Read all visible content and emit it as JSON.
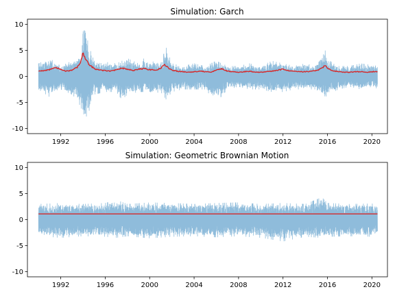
{
  "chart_data": [
    {
      "type": "line",
      "title": "Simulation: Garch",
      "xlabel": "",
      "ylabel": "",
      "xlim": [
        1989.0,
        2021.4
      ],
      "ylim": [
        -11,
        11
      ],
      "xticks": [
        1992,
        1996,
        2000,
        2004,
        2008,
        2012,
        2016,
        2020
      ],
      "yticks": [
        -10,
        -5,
        0,
        5,
        10
      ],
      "grid": false,
      "legend": "none",
      "x_range": [
        1990.0,
        2020.5
      ],
      "colors": {
        "returns": "#8fbcdb",
        "volatility": "#d62728"
      },
      "series": [
        {
          "role": "returns",
          "envelope": {
            "x": [
              1990.0,
              1991.0,
              1992.0,
              1993.0,
              1993.5,
              1993.9,
              1994.1,
              1994.5,
              1995.0,
              1996.0,
              1997.0,
              1997.5,
              1998.0,
              1999.0,
              1999.5,
              2000.0,
              2001.0,
              2001.5,
              2002.0,
              2003.0,
              2004.0,
              2005.0,
              2006.0,
              2007.0,
              2008.0,
              2009.0,
              2010.0,
              2011.0,
              2012.0,
              2013.0,
              2014.0,
              2015.0,
              2015.7,
              2016.0,
              2016.5,
              2017.0,
              2018.0,
              2019.0,
              2020.0,
              2020.5
            ],
            "upper": [
              2.5,
              3.5,
              2.0,
              3.0,
              3.5,
              6.0,
              10.8,
              6.0,
              3.0,
              2.8,
              2.5,
              3.0,
              3.5,
              2.5,
              3.5,
              2.8,
              3.0,
              5.5,
              2.5,
              2.0,
              2.5,
              2.0,
              3.0,
              2.0,
              2.0,
              2.5,
              2.0,
              3.0,
              2.5,
              2.0,
              2.5,
              2.0,
              5.7,
              3.5,
              2.5,
              2.0,
              2.0,
              2.5,
              2.2,
              2.5
            ],
            "lower": [
              -2.5,
              -4.0,
              -2.5,
              -3.5,
              -4.5,
              -6.5,
              -8.5,
              -7.0,
              -3.5,
              -3.0,
              -3.0,
              -4.5,
              -3.5,
              -3.0,
              -3.0,
              -3.5,
              -3.0,
              -4.5,
              -3.0,
              -2.5,
              -2.5,
              -2.5,
              -5.0,
              -2.5,
              -2.0,
              -2.5,
              -2.5,
              -3.0,
              -3.0,
              -2.5,
              -2.5,
              -2.5,
              -4.5,
              -3.5,
              -3.0,
              -2.5,
              -2.0,
              -2.5,
              -2.0,
              -2.8
            ]
          }
        },
        {
          "role": "volatility",
          "x": [
            1990.0,
            1990.5,
            1991.0,
            1991.5,
            1992.0,
            1992.5,
            1993.0,
            1993.5,
            1993.8,
            1994.0,
            1994.3,
            1994.7,
            1995.0,
            1995.5,
            1996.0,
            1996.5,
            1997.0,
            1997.5,
            1998.0,
            1998.5,
            1999.0,
            1999.5,
            2000.0,
            2000.5,
            2001.0,
            2001.3,
            2001.7,
            2002.0,
            2002.5,
            2003.0,
            2003.5,
            2004.0,
            2004.5,
            2005.0,
            2005.5,
            2006.0,
            2006.5,
            2007.0,
            2007.5,
            2008.0,
            2008.5,
            2009.0,
            2009.5,
            2010.0,
            2010.5,
            2011.0,
            2011.5,
            2012.0,
            2012.5,
            2013.0,
            2013.5,
            2014.0,
            2014.5,
            2015.0,
            2015.5,
            2015.8,
            2016.0,
            2016.5,
            2017.0,
            2017.5,
            2018.0,
            2018.5,
            2019.0,
            2019.5,
            2020.0,
            2020.5
          ],
          "y": [
            1.0,
            1.1,
            1.3,
            1.8,
            1.3,
            1.0,
            1.2,
            1.8,
            2.8,
            4.5,
            3.0,
            2.0,
            1.5,
            1.2,
            1.1,
            1.0,
            1.3,
            1.6,
            1.4,
            1.1,
            1.4,
            1.5,
            1.3,
            1.2,
            1.5,
            2.4,
            1.6,
            1.2,
            1.0,
            0.9,
            0.8,
            0.9,
            1.0,
            0.9,
            0.8,
            1.2,
            1.5,
            1.0,
            0.9,
            0.8,
            0.9,
            1.0,
            0.8,
            0.8,
            0.9,
            1.0,
            1.2,
            1.4,
            1.1,
            1.0,
            0.9,
            0.9,
            1.0,
            1.1,
            1.6,
            2.1,
            1.5,
            1.1,
            0.9,
            0.8,
            0.8,
            0.9,
            0.9,
            0.8,
            0.9,
            0.9
          ]
        }
      ]
    },
    {
      "type": "line",
      "title": "Simulation: Geometric Brownian Motion",
      "xlabel": "",
      "ylabel": "",
      "xlim": [
        1989.0,
        2021.4
      ],
      "ylim": [
        -11,
        11
      ],
      "xticks": [
        1992,
        1996,
        2000,
        2004,
        2008,
        2012,
        2016,
        2020
      ],
      "yticks": [
        -10,
        -5,
        0,
        5,
        10
      ],
      "grid": false,
      "legend": "none",
      "x_range": [
        1990.0,
        2020.5
      ],
      "colors": {
        "returns": "#8fbcdb",
        "volatility": "#d62728"
      },
      "series": [
        {
          "role": "returns",
          "envelope": {
            "x": [
              1990.0,
              1992.0,
              1994.0,
              1996.0,
              1997.0,
              1998.0,
              2000.0,
              2002.0,
              2004.0,
              2006.0,
              2008.0,
              2010.0,
              2012.0,
              2014.0,
              2015.5,
              2016.0,
              2018.0,
              2020.0,
              2020.5
            ],
            "upper": [
              3.0,
              3.2,
              3.0,
              3.2,
              3.8,
              3.0,
              3.3,
              3.2,
              3.0,
              3.2,
              3.3,
              3.0,
              3.2,
              3.0,
              4.3,
              3.2,
              3.0,
              3.1,
              2.8
            ],
            "lower": [
              -3.2,
              -3.5,
              -3.2,
              -3.3,
              -3.5,
              -3.2,
              -3.6,
              -3.3,
              -3.2,
              -3.4,
              -3.2,
              -3.5,
              -4.2,
              -3.3,
              -3.5,
              -3.3,
              -3.2,
              -3.3,
              -3.0
            ]
          }
        },
        {
          "role": "volatility",
          "x": [
            1990.0,
            2020.5
          ],
          "y": [
            1.1,
            1.1
          ]
        }
      ]
    }
  ]
}
